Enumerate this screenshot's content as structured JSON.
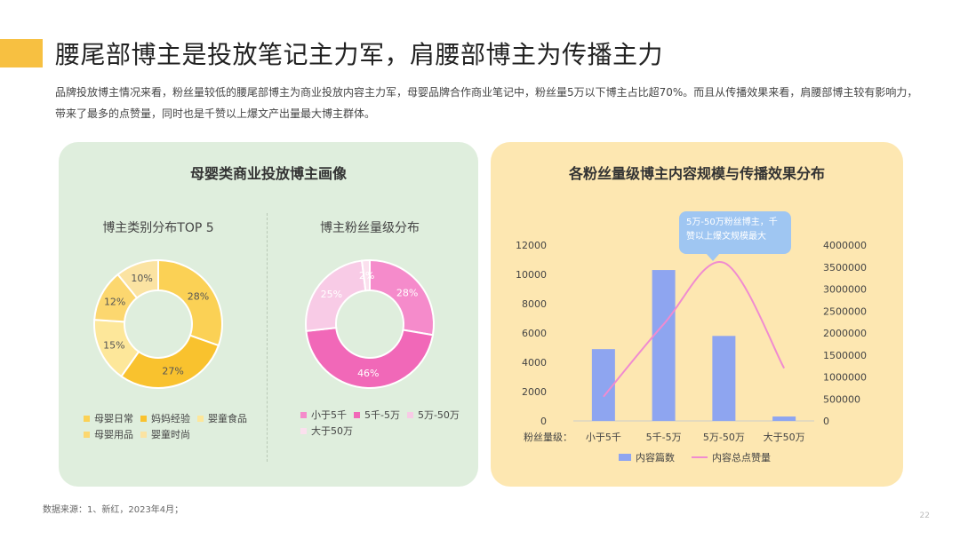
{
  "header": {
    "title": "腰尾部博主是投放笔记主力军，肩腰部博主为传播主力",
    "intro": "品牌投放博主情况来看，粉丝量较低的腰尾部博主为商业投放内容主力军，母婴品牌合作商业笔记中，粉丝量5万以下博主占比超70%。而且从传播效果来看，肩腰部博主较有影响力，带来了最多的点赞量，同时也是千赞以上爆文产出量最大博主群体。"
  },
  "left_panel": {
    "title": "母婴类商业投放博主画像"
  },
  "right_panel": {
    "title": "各粉丝量级博主内容规模与传播效果分布",
    "callout": "5万-50万粉丝博主，千赞以上爆文规模最大"
  },
  "colors": {
    "yellow_dark": "#f9c22e",
    "yellow_mid": "#fbd155",
    "yellow_light": "#fde79a",
    "pink_dark": "#f168b8",
    "pink_mid": "#f58bcb",
    "pink_light": "#f8cbe6",
    "bar_blue": "#8ea5f0",
    "line_pink": "#f08bd0"
  },
  "chart_data": [
    {
      "type": "pie",
      "variant": "donut",
      "title": "博主类别分布TOP 5",
      "labels": [
        "母婴日常",
        "妈妈经验",
        "婴童食品",
        "母婴用品",
        "婴童时尚"
      ],
      "values": [
        28,
        27,
        15,
        12,
        10
      ],
      "value_labels": [
        "28%",
        "27%",
        "15%",
        "12%",
        "10%"
      ],
      "colors": [
        "#fbd155",
        "#f9c22e",
        "#fde79a",
        "#fcd76f",
        "#fbe3a2"
      ],
      "legend_position": "bottom"
    },
    {
      "type": "pie",
      "variant": "donut",
      "title": "博主粉丝量级分布",
      "labels": [
        "小于5千",
        "5千-5万",
        "5万-50万",
        "大于50万"
      ],
      "values": [
        28,
        46,
        25,
        2
      ],
      "value_labels": [
        "28%",
        "46%",
        "25%",
        "2%"
      ],
      "colors": [
        "#f58bcb",
        "#f168b8",
        "#f8cbe6",
        "#fbe0ee"
      ],
      "legend_position": "bottom"
    },
    {
      "type": "bar",
      "combo": "bar+line",
      "x_prefix": "粉丝量级：",
      "categories": [
        "小于5千",
        "5千-5万",
        "5万-50万",
        "大于50万"
      ],
      "series": [
        {
          "name": "内容篇数",
          "kind": "bar",
          "axis": "left",
          "values": [
            4900,
            10300,
            5800,
            300
          ]
        },
        {
          "name": "内容总点赞量",
          "kind": "line",
          "axis": "right",
          "smooth": true,
          "values": [
            550000,
            2200000,
            3600000,
            1200000
          ]
        }
      ],
      "y_left": {
        "min": 0,
        "max": 12000,
        "ticks": [
          0,
          2000,
          4000,
          6000,
          8000,
          10000,
          12000
        ]
      },
      "y_right": {
        "min": 0,
        "max": 4000000,
        "ticks": [
          0,
          500000,
          1000000,
          1500000,
          2000000,
          2500000,
          3000000,
          3500000,
          4000000
        ]
      },
      "legend_position": "bottom"
    }
  ],
  "footer": {
    "source": "数据来源：1、新红，2023年4月；",
    "page_number": "22"
  }
}
